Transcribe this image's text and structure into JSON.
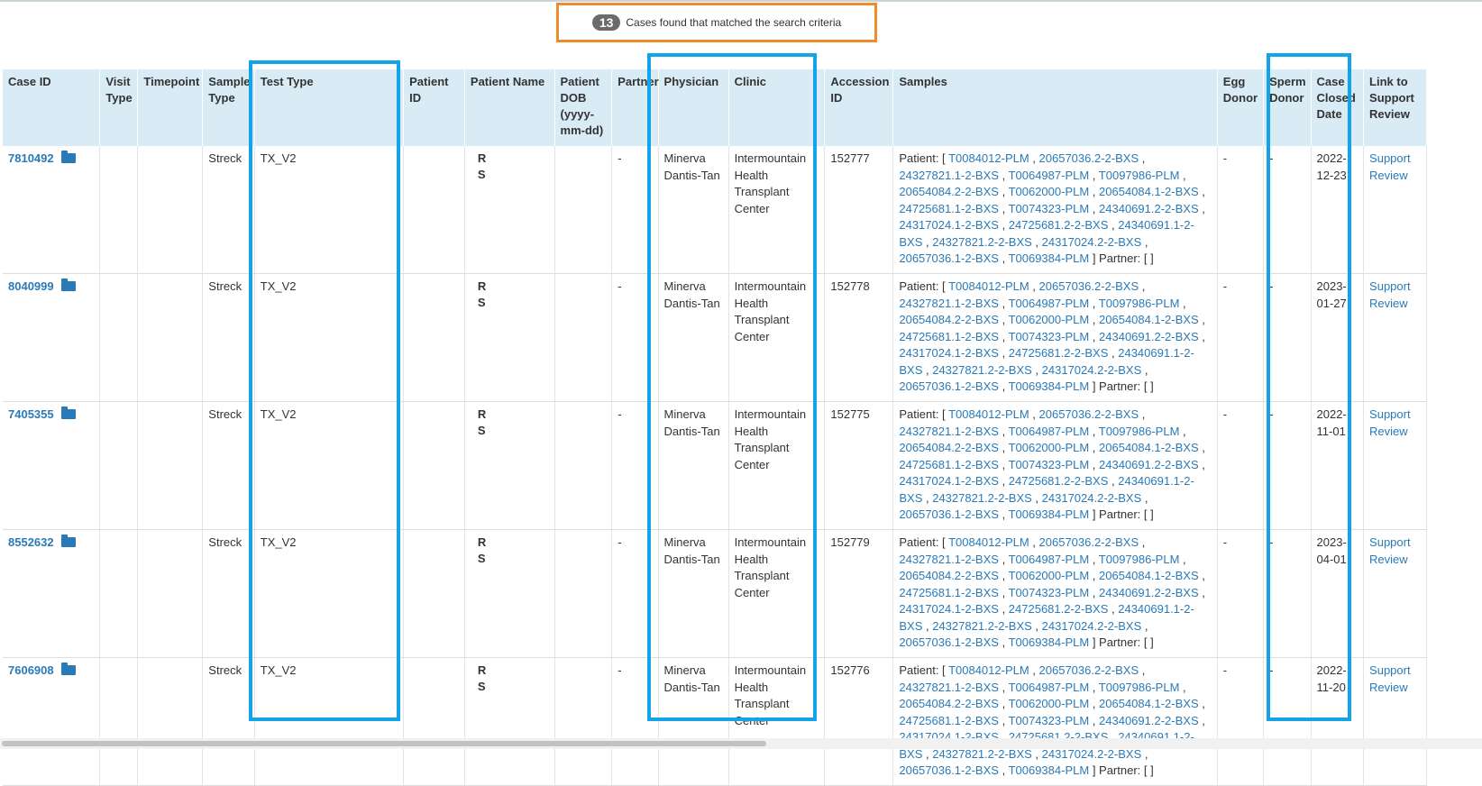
{
  "banner": {
    "count": "13",
    "text": "Cases found that matched the search criteria"
  },
  "columns": [
    "Case ID",
    "Visit Type",
    "Timepoint",
    "Sample Type",
    "Test Type",
    "Patient ID",
    "Patient Name",
    "Patient DOB (yyyy-mm-dd)",
    "Partner",
    "Physician",
    "Clinic",
    "Accession ID",
    "Samples",
    "Egg Donor",
    "Sperm Donor",
    "Case Closed Date",
    "Link to Support Review"
  ],
  "sample_ids": [
    "T0084012-PLM",
    "20657036.2-2-BXS",
    "24327821.1-2-BXS",
    "T0064987-PLM",
    "T0097986-PLM",
    "20654084.2-2-BXS",
    "T0062000-PLM",
    "20654084.1-2-BXS",
    "24725681.1-2-BXS",
    "T0074323-PLM",
    "24340691.2-2-BXS",
    "24317024.1-2-BXS",
    "24725681.2-2-BXS",
    "24340691.1-2-BXS",
    "24327821.2-2-BXS",
    "24317024.2-2-BXS",
    "20657036.1-2-BXS",
    "T0069384-PLM"
  ],
  "samples_prefix": "Patient: [",
  "samples_suffix": "] Partner: [ ]",
  "rows": [
    {
      "case_id": "7810492",
      "sample_type": "Streck",
      "test_type": "TX_V2",
      "name_line1": "R",
      "name_line2": "S",
      "partner": "-",
      "physician": "Minerva Dantis-Tan",
      "clinic": "Intermountain Health Transplant Center",
      "accession": "152777",
      "egg": "-",
      "sperm": "-",
      "closed": "2022-12-23",
      "support": "Support Review"
    },
    {
      "case_id": "8040999",
      "sample_type": "Streck",
      "test_type": "TX_V2",
      "name_line1": "R",
      "name_line2": "S",
      "partner": "-",
      "physician": "Minerva Dantis-Tan",
      "clinic": "Intermountain Health Transplant Center",
      "accession": "152778",
      "egg": "-",
      "sperm": "-",
      "closed": "2023-01-27",
      "support": "Support Review"
    },
    {
      "case_id": "7405355",
      "sample_type": "Streck",
      "test_type": "TX_V2",
      "name_line1": "R",
      "name_line2": "S",
      "partner": "-",
      "physician": "Minerva Dantis-Tan",
      "clinic": "Intermountain Health Transplant Center",
      "accession": "152775",
      "egg": "-",
      "sperm": "-",
      "closed": "2022-11-01",
      "support": "Support Review"
    },
    {
      "case_id": "8552632",
      "sample_type": "Streck",
      "test_type": "TX_V2",
      "name_line1": "R",
      "name_line2": "S",
      "partner": "-",
      "physician": "Minerva Dantis-Tan",
      "clinic": "Intermountain Health Transplant Center",
      "accession": "152779",
      "egg": "-",
      "sperm": "-",
      "closed": "2023-04-01",
      "support": "Support Review"
    },
    {
      "case_id": "7606908",
      "sample_type": "Streck",
      "test_type": "TX_V2",
      "name_line1": "R",
      "name_line2": "S",
      "partner": "-",
      "physician": "Minerva Dantis-Tan",
      "clinic": "Intermountain Health Transplant Center",
      "accession": "152776",
      "egg": "-",
      "sperm": "-",
      "closed": "2022-11-20",
      "support": "Support Review"
    }
  ],
  "colors": {
    "highlight_blue": "#12a3e8",
    "highlight_orange": "#f08a2b",
    "header_bg": "#d9ebf5",
    "link": "#2a7ab8"
  }
}
